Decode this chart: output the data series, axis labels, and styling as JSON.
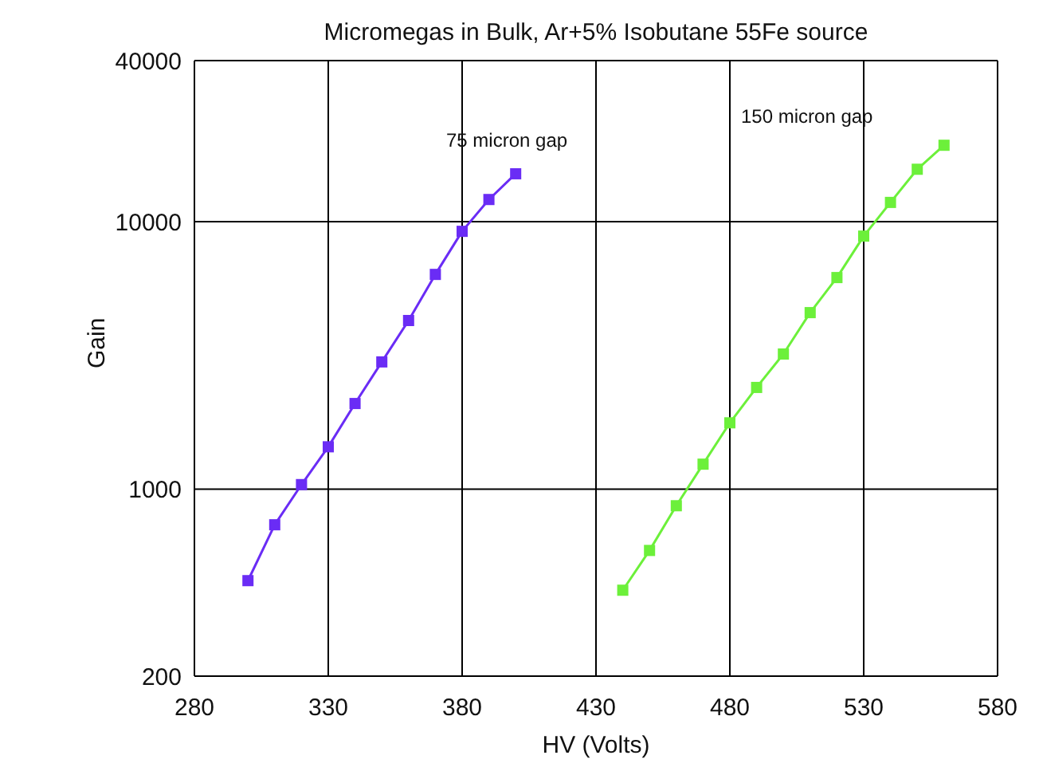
{
  "chart_data": {
    "type": "line",
    "title": "Micromegas in Bulk, Ar+5% Isobutane 55Fe source",
    "xlabel": "HV (Volts)",
    "ylabel": "Gain",
    "series": [
      {
        "color": "#6a2cf5",
        "x": [
          300,
          310,
          320,
          330,
          340,
          350,
          360,
          370,
          380,
          390,
          400
        ],
        "values": [
          455,
          736,
          1040,
          1440,
          2090,
          2990,
          4270,
          6350,
          9200,
          12100,
          15100
        ]
      },
      {
        "color": "#6cf03a",
        "x": [
          440,
          450,
          460,
          470,
          480,
          490,
          500,
          510,
          520,
          530,
          540,
          550,
          560
        ],
        "values": [
          419,
          590,
          867,
          1240,
          1770,
          2400,
          3200,
          4570,
          6180,
          8830,
          11800,
          15700,
          19300
        ]
      }
    ],
    "annotations": [
      "75 micron gap",
      "150 micron gap"
    ],
    "xlim": [
      280,
      580
    ],
    "xticks": [
      280,
      330,
      380,
      430,
      480,
      530,
      580
    ],
    "ylim": [
      200,
      40000
    ],
    "yticks": [
      200,
      1000,
      10000,
      40000
    ],
    "log": "y",
    "grid": true,
    "marker": "square",
    "line_style": "solid",
    "legend": false
  }
}
